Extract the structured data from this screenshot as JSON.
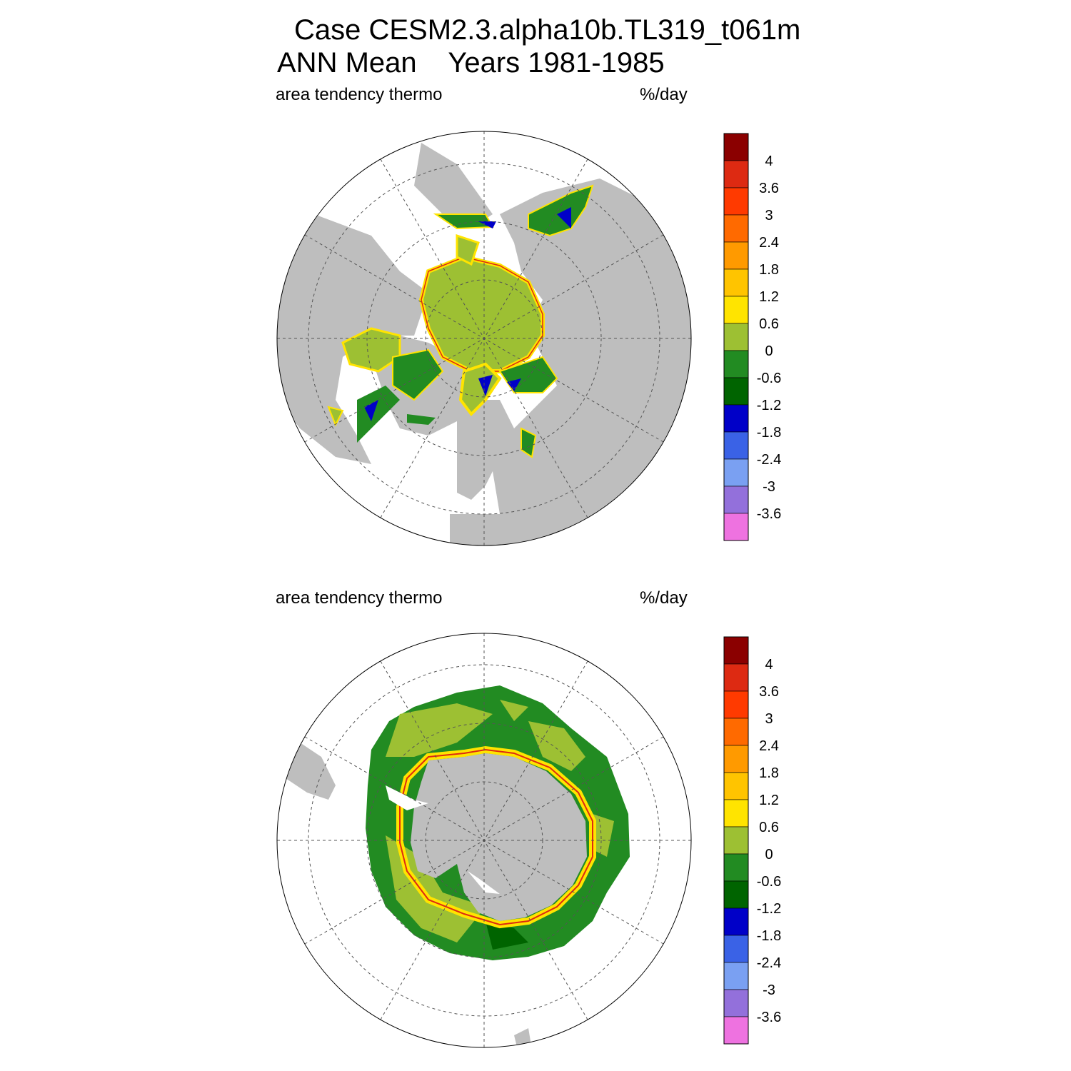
{
  "title": {
    "line1": "Case CESM2.3.alpha10b.TL319_t061m",
    "line2": "ANN Mean    Years 1981-1985"
  },
  "panels": [
    {
      "name": "north",
      "left_label": "area tendency thermo",
      "right_label": "%/day"
    },
    {
      "name": "south",
      "left_label": "area tendency thermo",
      "right_label": "%/day"
    }
  ],
  "colorbar": {
    "levels": [
      "4",
      "3.6",
      "3",
      "2.4",
      "1.8",
      "1.2",
      "0.6",
      "0",
      "-0.6",
      "-1.2",
      "-1.8",
      "-2.4",
      "-3",
      "-3.6"
    ],
    "colors": [
      "#8b0000",
      "#dd2a12",
      "#ff3a00",
      "#ff6a00",
      "#ff9a00",
      "#ffc400",
      "#ffe400",
      "#9dc033",
      "#228b22",
      "#006400",
      "#0000c8",
      "#3a62e6",
      "#7aa0f2",
      "#9370db",
      "#ee72e0"
    ]
  },
  "map_colors": {
    "land": "#bebebe",
    "ocean": "#ffffff",
    "ice_zero": "#9dc033",
    "ice_neg": "#228b22",
    "ice_dark": "#006400",
    "ice_blue": "#0000c8",
    "edge_yellow": "#ffe400",
    "edge_orange": "#ff9a00",
    "edge_red": "#dd2a12"
  }
}
